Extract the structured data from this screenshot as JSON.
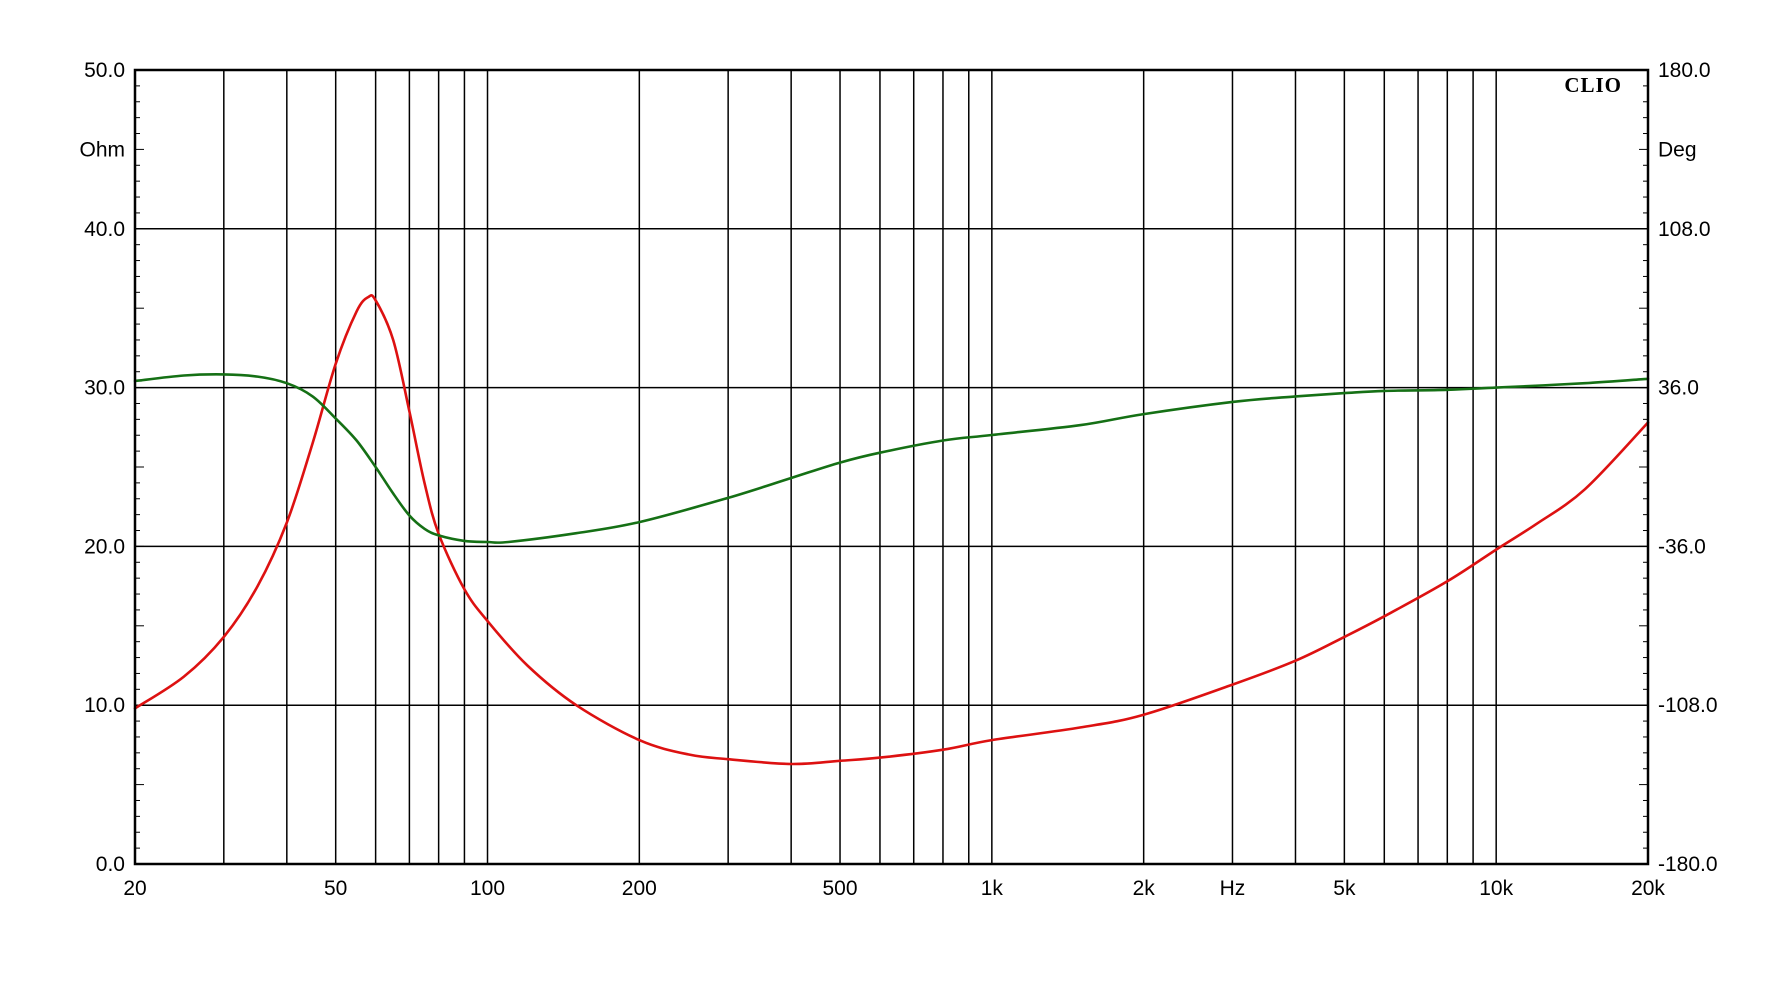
{
  "chart_data": {
    "type": "line",
    "title": "",
    "brand": "CLIO",
    "x_axis": {
      "scale": "log",
      "range": [
        20,
        20000
      ],
      "unit_label": "Hz",
      "ticks": [
        {
          "value": 20,
          "label": "20"
        },
        {
          "value": 50,
          "label": "50"
        },
        {
          "value": 100,
          "label": "100"
        },
        {
          "value": 200,
          "label": "200"
        },
        {
          "value": 500,
          "label": "500"
        },
        {
          "value": 1000,
          "label": "1k"
        },
        {
          "value": 2000,
          "label": "2k"
        },
        {
          "value": 5000,
          "label": "5k"
        },
        {
          "value": 10000,
          "label": "10k"
        },
        {
          "value": 20000,
          "label": "20k"
        }
      ],
      "unit_label_value": 3000,
      "gridlines": [
        30,
        40,
        50,
        60,
        70,
        80,
        90,
        100,
        200,
        300,
        400,
        500,
        600,
        700,
        800,
        900,
        1000,
        2000,
        3000,
        4000,
        5000,
        6000,
        7000,
        8000,
        9000,
        10000,
        20000
      ]
    },
    "y_axis_left": {
      "unit": "Ohm",
      "range": [
        0,
        50
      ],
      "ticks": [
        {
          "value": 0,
          "label": "0.0"
        },
        {
          "value": 10,
          "label": "10.0"
        },
        {
          "value": 20,
          "label": "20.0"
        },
        {
          "value": 30,
          "label": "30.0"
        },
        {
          "value": 40,
          "label": "40.0"
        },
        {
          "value": 50,
          "label": "50.0"
        }
      ]
    },
    "y_axis_right": {
      "unit": "Deg",
      "range": [
        -180,
        180
      ],
      "ticks": [
        {
          "value": -180,
          "label": "-180.0"
        },
        {
          "value": -108,
          "label": "-108.0"
        },
        {
          "value": -36,
          "label": "-36.0"
        },
        {
          "value": 36,
          "label": "36.0"
        },
        {
          "value": 108,
          "label": "108.0"
        },
        {
          "value": 180,
          "label": "180.0"
        }
      ]
    },
    "unit_label_position": {
      "left": 45,
      "right": 45
    },
    "grid": true,
    "series": [
      {
        "color": "#dd1111",
        "axis": "left",
        "points": [
          [
            20,
            9.8
          ],
          [
            25,
            11.8
          ],
          [
            30,
            14.3
          ],
          [
            35,
            17.5
          ],
          [
            40,
            21.5
          ],
          [
            45,
            26.5
          ],
          [
            50,
            31.5
          ],
          [
            55,
            34.8
          ],
          [
            58,
            35.7
          ],
          [
            60,
            35.5
          ],
          [
            65,
            33.0
          ],
          [
            70,
            28.5
          ],
          [
            75,
            24.0
          ],
          [
            80,
            20.8
          ],
          [
            90,
            17.3
          ],
          [
            100,
            15.3
          ],
          [
            120,
            12.5
          ],
          [
            150,
            10.0
          ],
          [
            200,
            7.8
          ],
          [
            250,
            6.9
          ],
          [
            300,
            6.6
          ],
          [
            400,
            6.3
          ],
          [
            500,
            6.5
          ],
          [
            600,
            6.7
          ],
          [
            800,
            7.2
          ],
          [
            1000,
            7.8
          ],
          [
            1500,
            8.6
          ],
          [
            2000,
            9.4
          ],
          [
            3000,
            11.3
          ],
          [
            4000,
            12.8
          ],
          [
            5000,
            14.3
          ],
          [
            6000,
            15.6
          ],
          [
            8000,
            17.8
          ],
          [
            10000,
            19.8
          ],
          [
            12000,
            21.4
          ],
          [
            15000,
            23.6
          ],
          [
            20000,
            27.8
          ]
        ]
      },
      {
        "color": "#157015",
        "axis": "right",
        "points": [
          [
            20,
            39.0
          ],
          [
            25,
            41.5
          ],
          [
            30,
            42.0
          ],
          [
            35,
            41.0
          ],
          [
            40,
            38.0
          ],
          [
            45,
            32.0
          ],
          [
            50,
            22.0
          ],
          [
            55,
            12.0
          ],
          [
            60,
            0.0
          ],
          [
            65,
            -12.0
          ],
          [
            70,
            -22.0
          ],
          [
            75,
            -28.0
          ],
          [
            80,
            -31.0
          ],
          [
            90,
            -33.5
          ],
          [
            100,
            -34.0
          ],
          [
            110,
            -34.0
          ],
          [
            150,
            -30.0
          ],
          [
            200,
            -25.0
          ],
          [
            300,
            -14.0
          ],
          [
            400,
            -5.0
          ],
          [
            500,
            2.0
          ],
          [
            600,
            6.5
          ],
          [
            800,
            12.0
          ],
          [
            1000,
            14.5
          ],
          [
            1500,
            19.0
          ],
          [
            2000,
            24.0
          ],
          [
            3000,
            29.5
          ],
          [
            4000,
            32.0
          ],
          [
            5000,
            33.5
          ],
          [
            6000,
            34.5
          ],
          [
            8000,
            35.0
          ],
          [
            10000,
            36.0
          ],
          [
            15000,
            38.0
          ],
          [
            20000,
            40.0
          ]
        ]
      }
    ]
  }
}
